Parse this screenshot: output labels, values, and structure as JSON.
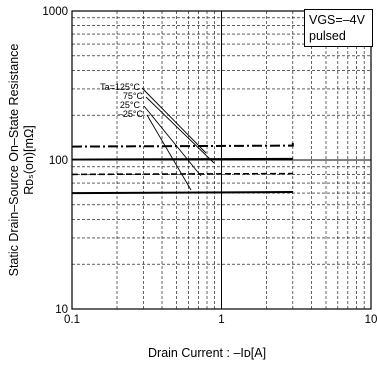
{
  "chart_data": {
    "type": "line",
    "title": "",
    "ylabel_line1": "Static Drain–Source On–State Resistance",
    "ylabel_line2": "Rᴅₛ(on)[mΩ]",
    "xlabel": "Drain Current : –Iᴅ[A]",
    "x_scale": "log",
    "y_scale": "log",
    "xlim": [
      0.1,
      10
    ],
    "ylim": [
      10,
      1000
    ],
    "x_tick_labels": [
      "0.1",
      "1",
      "10"
    ],
    "y_tick_labels": [
      "10",
      "100",
      "1000"
    ],
    "grid": true,
    "legend_box": [
      "VGS=–4V",
      "pulsed"
    ],
    "series": [
      {
        "name": "Ta=125°C",
        "x": [
          0.1,
          3.0,
          3.0
        ],
        "y": [
          123,
          125,
          130
        ]
      },
      {
        "name": "75°C",
        "x": [
          0.1,
          3.0
        ],
        "y": [
          101,
          102
        ]
      },
      {
        "name": "25°C",
        "x": [
          0.1,
          3.0
        ],
        "y": [
          80,
          81
        ]
      },
      {
        "name": "–25°C",
        "x": [
          0.1,
          3.0
        ],
        "y": [
          60,
          61
        ]
      }
    ],
    "annotation_labels": [
      "Ta=125°C",
      "75°C",
      "25°C",
      "–25°C"
    ]
  }
}
